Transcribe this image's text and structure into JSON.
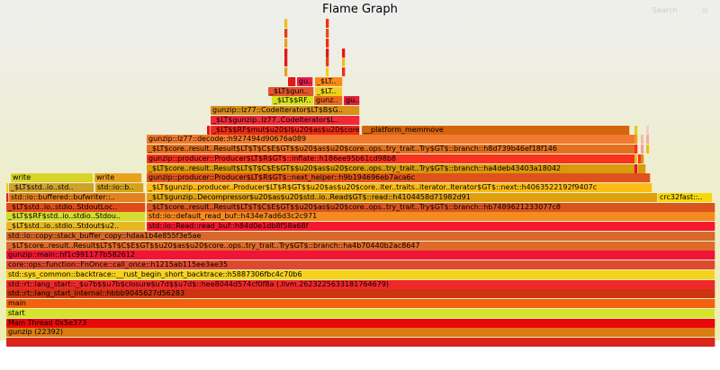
{
  "header": {
    "title": "Flame Graph",
    "search_label": "Search",
    "ic_label": "ic"
  },
  "frames": [
    {
      "label": "",
      "color": "#d9261c"
    },
    {
      "label": "gunzip (22392)",
      "color": "#da7b13"
    },
    {
      "label": "Main Thread 0x5e373",
      "color": "#e80a0a"
    },
    {
      "label": "start",
      "color": "#d4e32c"
    },
    {
      "label": "main",
      "color": "#f0620f"
    },
    {
      "label": "std::rt::lang_start_internal::hbbb9045627d56283",
      "color": "#cd3410"
    },
    {
      "label": "std::rt::lang_start::_$u7b$$u7b$closure$u7d$$u7d$::hee8044d574cf0f8a (.llvm.2623225633181764679)",
      "color": "#f0282a"
    },
    {
      "label": "std::sys_common::backtrace::__rust_begin_short_backtrace::h5887306fbc4c70b6",
      "color": "#f5d21e"
    },
    {
      "label": "core::ops::function::FnOnce::call_once::h1215ab115ee3ae35",
      "color": "#de4a2f"
    },
    {
      "label": "gunzip::main::hf1c991177b582612",
      "color": "#f01538"
    },
    {
      "label": "_$LT$core..result..Result$LT$T$C$E$GT$$u20$as$u20$core..ops..try_trait..Try$GT$::branch::ha4b70440b2ac8647",
      "color": "#de6a2b"
    },
    {
      "label": "std::io::copy::stack_buffer_copy::hdaa1b4e855f3e5ae",
      "color": "#d6682b"
    },
    {
      "label": "_$LT$std..io..stdio..Stdout$u2..",
      "color": "#e6b820"
    },
    {
      "label": "std::io::Read::read_buf::h84d0e1db8f58a68f",
      "color": "#f5182e"
    },
    {
      "label": "_$LT$$RF$std..io..stdio..Stdou..",
      "color": "#d5db30"
    },
    {
      "label": "std::io::default_read_buf::h434e7ad6d3c2c971",
      "color": "#f58a1e"
    },
    {
      "label": "_$LT$std..io..stdio..StdoutLoc..",
      "color": "#e04a1a"
    },
    {
      "label": "_$LT$core..result..Result$LT$T$C$E$GT$$u20$as$u20$core..ops..try_trait..Try$GT$::branch::hb7489621233077c8",
      "color": "#d9541f"
    },
    {
      "label": "",
      "color": "#e82010"
    },
    {
      "label": "std::io::buffered::bufwriter::..",
      "color": "#e0821f"
    },
    {
      "label": "_$LT$gunzip..Decompressor$u20$as$u20$std..io..Read$GT$::read::h4104458d71982d91",
      "color": "#e0a010"
    },
    {
      "label": "crc32fast::..",
      "color": "#f8d80c"
    },
    {
      "label": "",
      "color": "#e8d020"
    },
    {
      "label": "_$LT$std..io..std..",
      "color": "#cfa22c"
    },
    {
      "label": "std::io::b..",
      "color": "#d4a21c"
    },
    {
      "label": "_$LT$gunzip..producer..Producer$LT$R$GT$$u20$as$u20$core..iter..traits..iterator..Iterator$GT$::next::h4063522192f9407c",
      "color": "#fbbc14"
    },
    {
      "label": "write",
      "color": "#d8d42a"
    },
    {
      "label": "write",
      "color": "#e8a31c"
    },
    {
      "label": "gunzip::producer::Producer$LT$R$GT$::next_helper::h9b194696eb7aca6c",
      "color": "#e0521c"
    },
    {
      "label": "_$LT$core..result..Result$LT$T$C$E$GT$$u20$as$u20$core..ops..try_trait..Try$GT$::branch::ha4deb43403a18042",
      "color": "#d99a0c"
    },
    {
      "label": "gunzip::producer::Producer$LT$R$GT$::inflate::h186ee95b61cd98b8",
      "color": "#f8321c"
    },
    {
      "label": "_$LT$core..result..Result$LT$T$C$E$GT$$u20$as$u20$core..ops..try_trait..Try$GT$::branch::h8d739b46ef18f146",
      "color": "#e57020"
    },
    {
      "label": "gunzip::lz77::decode::h927494d90676a089",
      "color": "#f07a2d"
    },
    {
      "label": "",
      "color": "#e01818"
    },
    {
      "label": "_$LT$$RF$mut$u20$I$u20$as$u20$core..",
      "color": "#ee2a18"
    },
    {
      "label": "__platform_memmove",
      "color": "#d5640e"
    },
    {
      "label": "_$LT$gunzip..lz77..CodeIterator$L..",
      "color": "#ee2a3a"
    },
    {
      "label": "gunzip::lz77::CodeIterator$LT$B$G..",
      "color": "#d9901c"
    },
    {
      "label": "_$LT$$RF..",
      "color": "#d6e21c"
    },
    {
      "label": "gunz..",
      "color": "#e86b1a"
    },
    {
      "label": "gu..",
      "color": "#e0213a"
    },
    {
      "label": "_$LT$gun..",
      "color": "#e2552a"
    },
    {
      "label": "_$LT..",
      "color": "#f0d01a"
    },
    {
      "label": "",
      "color": "#e01818"
    },
    {
      "label": "gu..",
      "color": "#e8204a"
    },
    {
      "label": "_$LT..",
      "color": "#f88a18"
    }
  ]
}
